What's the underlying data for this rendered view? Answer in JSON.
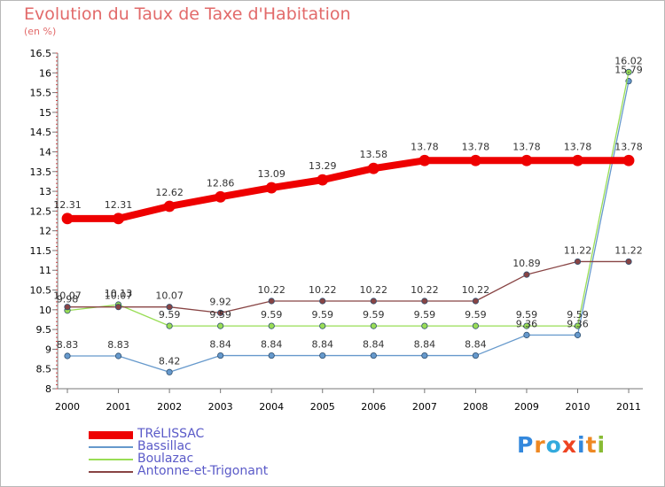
{
  "chart_data": {
    "type": "line",
    "title": "Evolution du Taux de Taxe d'Habitation",
    "subtitle": "(en %)",
    "xlabel": "",
    "ylabel": "",
    "x": [
      "2000",
      "2001",
      "2002",
      "2003",
      "2004",
      "2005",
      "2006",
      "2007",
      "2008",
      "2009",
      "2010",
      "2011"
    ],
    "ylim": [
      8,
      16.5
    ],
    "yticks": [
      "8",
      "8.5",
      "9",
      "9.5",
      "10",
      "10.5",
      "11",
      "11.5",
      "12",
      "12.5",
      "13",
      "13.5",
      "14",
      "14.5",
      "15",
      "15.5",
      "16",
      "16.5"
    ],
    "grid": false,
    "legend_position": "bottom-left",
    "series": [
      {
        "name": "TRéLISSAC",
        "color": "#ee0000",
        "values": [
          12.31,
          12.31,
          12.62,
          12.86,
          13.09,
          13.29,
          13.58,
          13.78,
          13.78,
          13.78,
          13.78,
          13.78
        ],
        "labels": [
          "12.31",
          "12.31",
          "12.62",
          "12.86",
          "13.09",
          "13.29",
          "13.58",
          "13.78",
          "13.78",
          "13.78",
          "13.78",
          "13.78"
        ]
      },
      {
        "name": "Bassillac",
        "color": "#6699cc",
        "values": [
          8.83,
          8.83,
          8.42,
          8.84,
          8.84,
          8.84,
          8.84,
          8.84,
          8.84,
          9.36,
          9.36,
          15.79
        ],
        "labels": [
          "8.83",
          "8.83",
          "8.42",
          "8.84",
          "8.84",
          "8.84",
          "8.84",
          "8.84",
          "8.84",
          "9.36",
          "9.36",
          "15.79"
        ]
      },
      {
        "name": "Boulazac",
        "color": "#99dd55",
        "values": [
          9.98,
          10.13,
          9.59,
          9.59,
          9.59,
          9.59,
          9.59,
          9.59,
          9.59,
          9.59,
          9.59,
          16.02
        ],
        "labels": [
          "9.98",
          "10.13",
          "9.59",
          "9.59",
          "9.59",
          "9.59",
          "9.59",
          "9.59",
          "9.59",
          "9.59",
          "9.59",
          "16.02"
        ]
      },
      {
        "name": "Antonne-et-Trigonant",
        "color": "#884444",
        "values": [
          10.07,
          10.07,
          10.07,
          9.92,
          10.22,
          10.22,
          10.22,
          10.22,
          10.22,
          10.89,
          11.22,
          11.22
        ],
        "labels": [
          "10.07",
          "10.07",
          "10.07",
          "9.92",
          "10.22",
          "10.22",
          "10.22",
          "10.22",
          "10.22",
          "10.89",
          "11.22",
          "11.22"
        ]
      }
    ]
  },
  "branding": {
    "name": "Proxiti",
    "letters": [
      {
        "ch": "P",
        "color": "#3388dd"
      },
      {
        "ch": "r",
        "color": "#ee8822"
      },
      {
        "ch": "o",
        "color": "#33aadd"
      },
      {
        "ch": "x",
        "color": "#ee4422"
      },
      {
        "ch": "i",
        "color": "#3388dd"
      },
      {
        "ch": "t",
        "color": "#ee8822"
      },
      {
        "ch": "i",
        "color": "#88bb33"
      }
    ]
  }
}
